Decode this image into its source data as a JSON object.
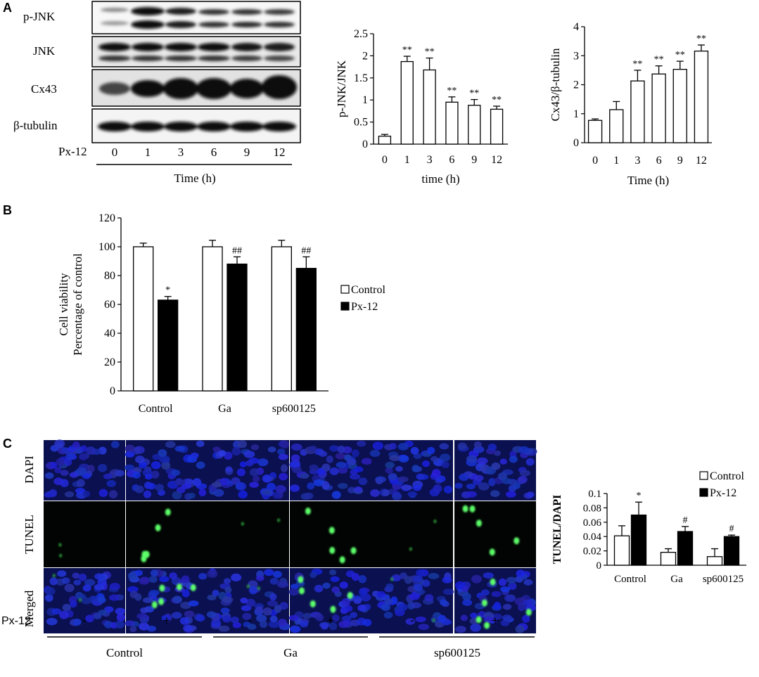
{
  "panels": {
    "a": "A",
    "b": "B",
    "c": "C"
  },
  "blot": {
    "rows": [
      "p-JNK",
      "JNK",
      "Cx43",
      "β-tubulin"
    ],
    "treatment_label": "Px-12",
    "lanes": [
      "0",
      "1",
      "3",
      "6",
      "9",
      "12"
    ],
    "time_label": "Time (h)"
  },
  "chart_data": [
    {
      "id": "pjnk",
      "type": "bar",
      "categories": [
        "0",
        "1",
        "3",
        "6",
        "9",
        "12"
      ],
      "values": [
        0.18,
        1.87,
        1.68,
        0.95,
        0.88,
        0.79
      ],
      "errors": [
        0.04,
        0.12,
        0.27,
        0.12,
        0.13,
        0.07
      ],
      "annotations": [
        "",
        "**",
        "**",
        "**",
        "**",
        "**"
      ],
      "xlabel": "time (h)",
      "ylabel": "p-JNK/JNK",
      "ylim": [
        0,
        2.5
      ],
      "yticks": [
        "0",
        "0.5",
        "1",
        "1.5",
        "2",
        "2.5"
      ],
      "color": "#ffffff"
    },
    {
      "id": "cx43",
      "type": "bar",
      "categories": [
        "0",
        "1",
        "3",
        "6",
        "9",
        "12"
      ],
      "values": [
        0.77,
        1.14,
        2.13,
        2.37,
        2.53,
        3.16
      ],
      "errors": [
        0.05,
        0.28,
        0.37,
        0.28,
        0.28,
        0.21
      ],
      "annotations": [
        "",
        "",
        "**",
        "**",
        "**",
        "**"
      ],
      "xlabel": "Time (h)",
      "ylabel": "Cx43/β-tubulin",
      "ylim": [
        0,
        4
      ],
      "yticks": [
        "0",
        "1",
        "2",
        "3",
        "4"
      ],
      "color": "#ffffff"
    },
    {
      "id": "viability",
      "type": "bar",
      "categories": [
        "Control",
        "Ga",
        "sp600125"
      ],
      "series": [
        {
          "name": "Control",
          "values": [
            100,
            100,
            100
          ],
          "errors": [
            2.5,
            4.5,
            4.5
          ],
          "annotations": [
            "",
            "",
            ""
          ],
          "color": "#ffffff"
        },
        {
          "name": "Px-12",
          "values": [
            63,
            88,
            85
          ],
          "errors": [
            2.5,
            5,
            8
          ],
          "annotations": [
            "*",
            "##",
            "##"
          ],
          "color": "#000000"
        }
      ],
      "ylabel_lines": [
        "Cell viability",
        "Percentage of control"
      ],
      "ylim": [
        0,
        120
      ],
      "yticks": [
        "0",
        "20",
        "40",
        "60",
        "80",
        "100",
        "120"
      ],
      "legend": "right"
    },
    {
      "id": "tunel",
      "type": "bar",
      "categories": [
        "Control",
        "Ga",
        "sp600125"
      ],
      "series": [
        {
          "name": "Control",
          "values": [
            0.041,
            0.018,
            0.012
          ],
          "errors": [
            0.014,
            0.005,
            0.011
          ],
          "annotations": [
            "",
            "",
            ""
          ],
          "color": "#ffffff"
        },
        {
          "name": "Px-12",
          "values": [
            0.07,
            0.047,
            0.04
          ],
          "errors": [
            0.018,
            0.007,
            0.002
          ],
          "annotations": [
            "*",
            "#",
            "#"
          ],
          "color": "#000000"
        }
      ],
      "ylabel": "TUNEL/DAPI",
      "ylim": [
        0,
        0.1
      ],
      "yticks": [
        "0",
        "0.02",
        "0.04",
        "0.06",
        "0.08",
        "0.1"
      ],
      "legend": "top-right"
    }
  ],
  "micro": {
    "rows": [
      "DAPI",
      "TUNEL",
      "Merged"
    ],
    "treatment_label": "Px-12",
    "signs": [
      "-",
      "+",
      "-",
      "+",
      "-",
      "+"
    ],
    "groups": [
      "Control",
      "Ga",
      "sp600125"
    ]
  }
}
